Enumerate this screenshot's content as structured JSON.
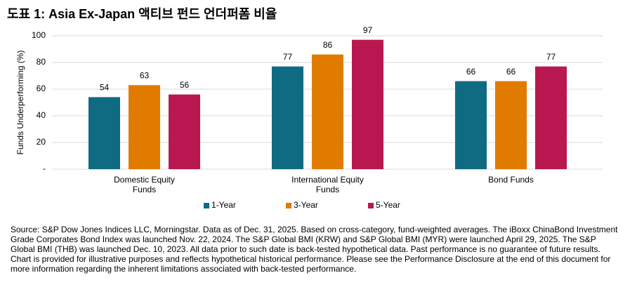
{
  "chart_data": {
    "type": "bar",
    "title": "도표 1: Asia Ex-Japan 액티브 펀드 언더퍼폼 비율",
    "y_label": "Funds Underperforming (%)",
    "categories": [
      "Domestic Equity Funds",
      "International Equity Funds",
      "Bond Funds"
    ],
    "series": [
      {
        "name": "1-Year",
        "color": "#0f6b82",
        "values": [
          54,
          77,
          66
        ]
      },
      {
        "name": "3-Year",
        "color": "#e07b00",
        "values": [
          63,
          86,
          66
        ]
      },
      {
        "name": "5-Year",
        "color": "#b8184f",
        "values": [
          56,
          97,
          77
        ]
      }
    ],
    "ylim": [
      0,
      100
    ],
    "yticks": [
      {
        "value": 0,
        "label": "-"
      },
      20,
      40,
      60,
      80,
      100
    ],
    "grid": true,
    "legend": "bottom",
    "note": "Source: S&P Dow Jones Indices LLC, Morningstar.  Data as of Dec. 31, 2025.  Based on cross-category, fund-weighted averages.  The iBoxx ChinaBond Investment Grade Corporates Bond Index was launched Nov. 22, 2024.  The S&P Global BMI (KRW) and S&P Global BMI (MYR) were launched April 29, 2025.  The S&P Global BMI (THB) was launched Dec. 10, 2023.  All data prior to such date is back-tested hypothetical data.  Past performance is no guarantee of future results.  Chart is provided for illustrative purposes and reflects hypothetical historical performance.  Please see the Performance Disclosure at the end of this document for more information regarding the inherent limitations associated with back-tested performance."
  }
}
